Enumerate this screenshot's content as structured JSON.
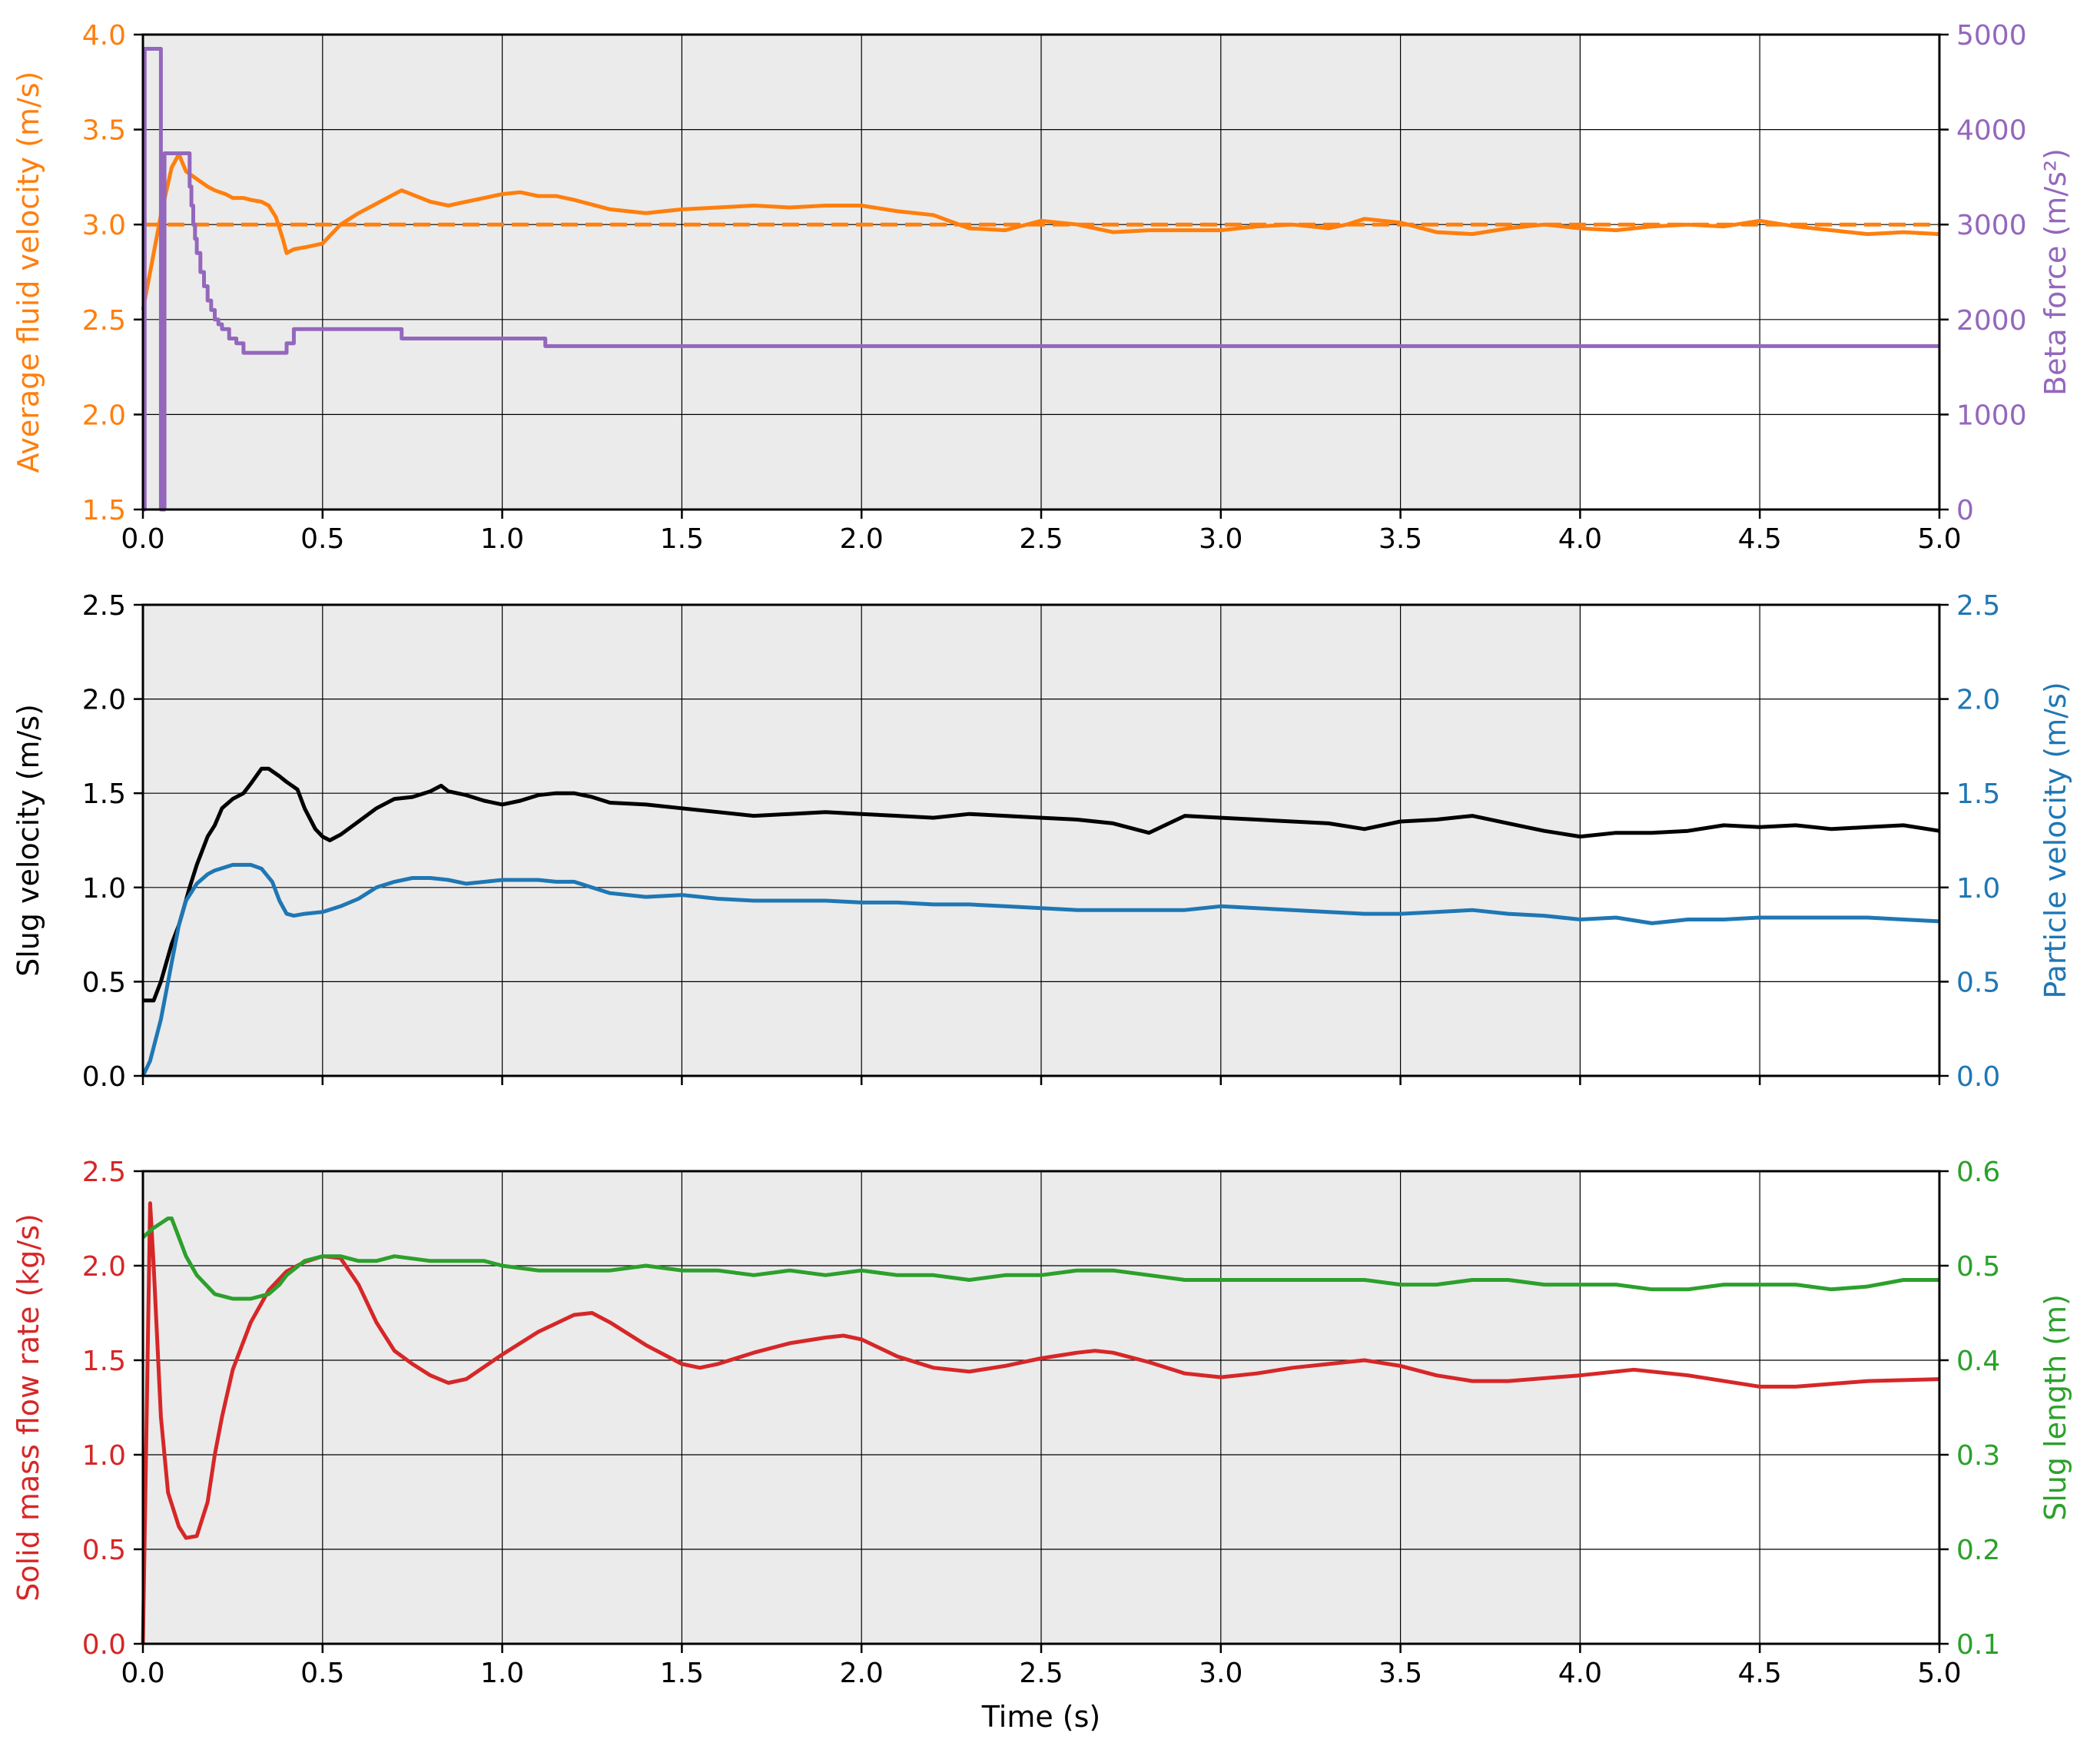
{
  "chart_data": [
    {
      "type": "line",
      "x_axis": {
        "ylim_unused": null,
        "xlim": [
          0,
          5
        ],
        "ticks": [
          0,
          0.5,
          1,
          1.5,
          2,
          2.5,
          3,
          3.5,
          4,
          4.5,
          5
        ],
        "tick_labels": [
          "0.0",
          "0.5",
          "1.0",
          "1.5",
          "2.0",
          "2.5",
          "3.0",
          "3.5",
          "4.0",
          "4.5",
          "5.0"
        ]
      },
      "shaded_region": [
        0,
        4
      ],
      "grid": true,
      "left_axis": {
        "label": "Average fluid velocity (m/s)",
        "color": "#ff7f0e",
        "ylim": [
          1.5,
          4.0
        ],
        "ticks": [
          1.5,
          2.0,
          2.5,
          3.0,
          3.5,
          4.0
        ],
        "tick_labels": [
          "1.5",
          "2.0",
          "2.5",
          "3.0",
          "3.5",
          "4.0"
        ]
      },
      "right_axis": {
        "label": "Beta force (m/s²)",
        "color": "#9467bd",
        "ylim": [
          0,
          5000
        ],
        "ticks": [
          0,
          1000,
          2000,
          3000,
          4000,
          5000
        ],
        "tick_labels": [
          "0",
          "1000",
          "2000",
          "3000",
          "4000",
          "5000"
        ]
      },
      "series": [
        {
          "axis": "left",
          "color": "#ff7f0e",
          "dashed": true,
          "x": [
            0,
            5
          ],
          "y": [
            3.0,
            3.0
          ]
        },
        {
          "axis": "left",
          "color": "#ff7f0e",
          "x": [
            0,
            0.02,
            0.05,
            0.08,
            0.1,
            0.12,
            0.15,
            0.18,
            0.2,
            0.23,
            0.25,
            0.28,
            0.3,
            0.33,
            0.35,
            0.37,
            0.39,
            0.4,
            0.42,
            0.45,
            0.5,
            0.55,
            0.6,
            0.7,
            0.72,
            0.8,
            0.85,
            0.9,
            1.0,
            1.05,
            1.1,
            1.15,
            1.2,
            1.3,
            1.4,
            1.5,
            1.6,
            1.7,
            1.8,
            1.9,
            2.0,
            2.1,
            2.2,
            2.3,
            2.4,
            2.5,
            2.6,
            2.7,
            2.8,
            2.9,
            3.0,
            3.1,
            3.2,
            3.3,
            3.35,
            3.4,
            3.5,
            3.6,
            3.7,
            3.8,
            3.9,
            4.0,
            4.1,
            4.2,
            4.3,
            4.4,
            4.5,
            4.6,
            4.7,
            4.8,
            4.9,
            5.0
          ],
          "y": [
            2.55,
            2.75,
            3.05,
            3.3,
            3.37,
            3.28,
            3.24,
            3.2,
            3.18,
            3.16,
            3.14,
            3.14,
            3.13,
            3.12,
            3.1,
            3.04,
            2.92,
            2.85,
            2.87,
            2.88,
            2.9,
            3.0,
            3.06,
            3.16,
            3.18,
            3.12,
            3.1,
            3.12,
            3.16,
            3.17,
            3.15,
            3.15,
            3.13,
            3.08,
            3.06,
            3.08,
            3.09,
            3.1,
            3.09,
            3.1,
            3.1,
            3.07,
            3.05,
            2.98,
            2.97,
            3.02,
            3.0,
            2.96,
            2.97,
            2.97,
            2.97,
            2.99,
            3.0,
            2.98,
            3.0,
            3.03,
            3.01,
            2.96,
            2.95,
            2.98,
            3.0,
            2.98,
            2.97,
            2.99,
            3.0,
            2.99,
            3.02,
            2.99,
            2.97,
            2.95,
            2.96,
            2.95
          ]
        },
        {
          "axis": "right",
          "color": "#9467bd",
          "step": true,
          "x": [
            0,
            0.005,
            0.04,
            0.05,
            0.06,
            0.12,
            0.13,
            0.135,
            0.14,
            0.145,
            0.15,
            0.16,
            0.17,
            0.18,
            0.19,
            0.2,
            0.21,
            0.22,
            0.24,
            0.26,
            0.28,
            0.3,
            0.38,
            0.4,
            0.42,
            0.7,
            0.72,
            1.1,
            1.12,
            5.0
          ],
          "y": [
            0,
            4850,
            4850,
            0,
            3750,
            3750,
            3400,
            3200,
            3000,
            2850,
            2700,
            2500,
            2350,
            2200,
            2100,
            2000,
            1950,
            1900,
            1800,
            1750,
            1650,
            1650,
            1650,
            1750,
            1900,
            1900,
            1800,
            1800,
            1720,
            1720
          ]
        }
      ]
    },
    {
      "type": "line",
      "x_axis": {
        "xlim": [
          0,
          5
        ],
        "ticks": [
          0,
          0.5,
          1,
          1.5,
          2,
          2.5,
          3,
          3.5,
          4,
          4.5,
          5
        ]
      },
      "shaded_region": [
        0,
        4
      ],
      "grid": true,
      "left_axis": {
        "label": "Slug velocity (m/s)",
        "color": "#000000",
        "ylim": [
          0,
          2.5
        ],
        "ticks": [
          0,
          0.5,
          1,
          1.5,
          2,
          2.5
        ],
        "tick_labels": [
          "0.0",
          "0.5",
          "1.0",
          "1.5",
          "2.0",
          "2.5"
        ]
      },
      "right_axis": {
        "label": "Particle velocity (m/s)",
        "color": "#1f77b4",
        "ylim": [
          0,
          2.5
        ],
        "ticks": [
          0,
          0.5,
          1,
          1.5,
          2,
          2.5
        ],
        "tick_labels": [
          "0.0",
          "0.5",
          "1.0",
          "1.5",
          "2.0",
          "2.5"
        ]
      },
      "series": [
        {
          "axis": "left",
          "color": "#000000",
          "x": [
            0,
            0.03,
            0.05,
            0.08,
            0.1,
            0.13,
            0.15,
            0.18,
            0.2,
            0.22,
            0.25,
            0.28,
            0.3,
            0.33,
            0.35,
            0.38,
            0.4,
            0.43,
            0.45,
            0.48,
            0.5,
            0.52,
            0.55,
            0.6,
            0.65,
            0.7,
            0.75,
            0.8,
            0.83,
            0.85,
            0.9,
            0.95,
            1.0,
            1.05,
            1.1,
            1.15,
            1.2,
            1.25,
            1.3,
            1.4,
            1.5,
            1.6,
            1.7,
            1.8,
            1.9,
            2.0,
            2.1,
            2.2,
            2.3,
            2.4,
            2.5,
            2.6,
            2.7,
            2.8,
            2.9,
            3.0,
            3.1,
            3.2,
            3.3,
            3.4,
            3.5,
            3.6,
            3.7,
            3.8,
            3.9,
            4.0,
            4.1,
            4.2,
            4.3,
            4.4,
            4.5,
            4.6,
            4.7,
            4.8,
            4.9,
            5.0
          ],
          "y": [
            0.4,
            0.4,
            0.5,
            0.7,
            0.8,
            1.0,
            1.12,
            1.27,
            1.33,
            1.42,
            1.47,
            1.5,
            1.55,
            1.63,
            1.63,
            1.59,
            1.56,
            1.52,
            1.42,
            1.31,
            1.27,
            1.25,
            1.28,
            1.35,
            1.42,
            1.47,
            1.48,
            1.51,
            1.54,
            1.51,
            1.49,
            1.46,
            1.44,
            1.46,
            1.49,
            1.5,
            1.5,
            1.48,
            1.45,
            1.44,
            1.42,
            1.4,
            1.38,
            1.39,
            1.4,
            1.39,
            1.38,
            1.37,
            1.39,
            1.38,
            1.37,
            1.36,
            1.34,
            1.29,
            1.38,
            1.37,
            1.36,
            1.35,
            1.34,
            1.31,
            1.35,
            1.36,
            1.38,
            1.34,
            1.3,
            1.27,
            1.29,
            1.29,
            1.3,
            1.33,
            1.32,
            1.33,
            1.31,
            1.32,
            1.33,
            1.3
          ]
        },
        {
          "axis": "right",
          "color": "#1f77b4",
          "x": [
            0,
            0.02,
            0.05,
            0.08,
            0.1,
            0.12,
            0.15,
            0.18,
            0.2,
            0.25,
            0.3,
            0.33,
            0.36,
            0.38,
            0.4,
            0.42,
            0.45,
            0.5,
            0.55,
            0.6,
            0.65,
            0.7,
            0.75,
            0.8,
            0.85,
            0.9,
            1.0,
            1.1,
            1.15,
            1.2,
            1.3,
            1.4,
            1.5,
            1.6,
            1.7,
            1.8,
            1.9,
            2.0,
            2.1,
            2.2,
            2.3,
            2.4,
            2.5,
            2.6,
            2.7,
            2.8,
            2.9,
            3.0,
            3.1,
            3.2,
            3.3,
            3.4,
            3.5,
            3.6,
            3.7,
            3.8,
            3.9,
            4.0,
            4.1,
            4.2,
            4.3,
            4.4,
            4.5,
            4.6,
            4.7,
            4.8,
            4.9,
            5.0
          ],
          "y": [
            0.0,
            0.08,
            0.3,
            0.6,
            0.8,
            0.93,
            1.02,
            1.07,
            1.09,
            1.12,
            1.12,
            1.1,
            1.03,
            0.93,
            0.86,
            0.85,
            0.86,
            0.87,
            0.9,
            0.94,
            1.0,
            1.03,
            1.05,
            1.05,
            1.04,
            1.02,
            1.04,
            1.04,
            1.03,
            1.03,
            0.97,
            0.95,
            0.96,
            0.94,
            0.93,
            0.93,
            0.93,
            0.92,
            0.92,
            0.91,
            0.91,
            0.9,
            0.89,
            0.88,
            0.88,
            0.88,
            0.88,
            0.9,
            0.89,
            0.88,
            0.87,
            0.86,
            0.86,
            0.87,
            0.88,
            0.86,
            0.85,
            0.83,
            0.84,
            0.81,
            0.83,
            0.83,
            0.84,
            0.84,
            0.84,
            0.84,
            0.83,
            0.82
          ]
        }
      ]
    },
    {
      "type": "line",
      "x_axis": {
        "label": "Time (s)",
        "xlim": [
          0,
          5
        ],
        "ticks": [
          0,
          0.5,
          1,
          1.5,
          2,
          2.5,
          3,
          3.5,
          4,
          4.5,
          5
        ],
        "tick_labels": [
          "0.0",
          "0.5",
          "1.0",
          "1.5",
          "2.0",
          "2.5",
          "3.0",
          "3.5",
          "4.0",
          "4.5",
          "5.0"
        ]
      },
      "shaded_region": [
        0,
        4
      ],
      "grid": true,
      "left_axis": {
        "label": "Solid mass flow rate (kg/s)",
        "color": "#d62728",
        "ylim": [
          0,
          2.5
        ],
        "ticks": [
          0,
          0.5,
          1,
          1.5,
          2,
          2.5
        ],
        "tick_labels": [
          "0.0",
          "0.5",
          "1.0",
          "1.5",
          "2.0",
          "2.5"
        ]
      },
      "right_axis": {
        "label": "Slug length (m)",
        "color": "#2ca02c",
        "ylim": [
          0.1,
          0.6
        ],
        "ticks": [
          0.1,
          0.2,
          0.3,
          0.4,
          0.5,
          0.6
        ],
        "tick_labels": [
          "0.1",
          "0.2",
          "0.3",
          "0.4",
          "0.5",
          "0.6"
        ]
      },
      "series": [
        {
          "axis": "left",
          "color": "#d62728",
          "x": [
            0,
            0.02,
            0.03,
            0.05,
            0.07,
            0.1,
            0.12,
            0.15,
            0.18,
            0.2,
            0.22,
            0.25,
            0.3,
            0.35,
            0.4,
            0.45,
            0.5,
            0.55,
            0.6,
            0.65,
            0.7,
            0.75,
            0.8,
            0.85,
            0.9,
            1.0,
            1.1,
            1.2,
            1.25,
            1.3,
            1.4,
            1.5,
            1.55,
            1.6,
            1.7,
            1.8,
            1.9,
            1.95,
            2.0,
            2.1,
            2.2,
            2.3,
            2.4,
            2.5,
            2.6,
            2.65,
            2.7,
            2.8,
            2.9,
            3.0,
            3.1,
            3.2,
            3.3,
            3.4,
            3.5,
            3.6,
            3.7,
            3.75,
            3.8,
            4.0,
            4.15,
            4.3,
            4.5,
            4.6,
            4.8,
            5.0
          ],
          "y": [
            0.0,
            2.33,
            2.0,
            1.2,
            0.8,
            0.62,
            0.56,
            0.57,
            0.75,
            1.0,
            1.2,
            1.45,
            1.7,
            1.87,
            1.97,
            2.02,
            2.05,
            2.04,
            1.9,
            1.7,
            1.55,
            1.48,
            1.42,
            1.38,
            1.4,
            1.53,
            1.65,
            1.74,
            1.75,
            1.7,
            1.58,
            1.48,
            1.46,
            1.48,
            1.54,
            1.59,
            1.62,
            1.63,
            1.61,
            1.52,
            1.46,
            1.44,
            1.47,
            1.51,
            1.54,
            1.55,
            1.54,
            1.49,
            1.43,
            1.41,
            1.43,
            1.46,
            1.48,
            1.5,
            1.47,
            1.42,
            1.39,
            1.39,
            1.39,
            1.42,
            1.45,
            1.42,
            1.36,
            1.36,
            1.39,
            1.4
          ]
        },
        {
          "axis": "right",
          "color": "#2ca02c",
          "x": [
            0,
            0.03,
            0.05,
            0.07,
            0.08,
            0.1,
            0.12,
            0.15,
            0.2,
            0.25,
            0.3,
            0.35,
            0.38,
            0.4,
            0.45,
            0.5,
            0.55,
            0.6,
            0.65,
            0.7,
            0.8,
            0.85,
            0.9,
            0.95,
            1.0,
            1.1,
            1.2,
            1.3,
            1.4,
            1.5,
            1.6,
            1.7,
            1.8,
            1.9,
            2.0,
            2.1,
            2.2,
            2.3,
            2.4,
            2.5,
            2.6,
            2.7,
            2.8,
            2.9,
            3.0,
            3.1,
            3.2,
            3.3,
            3.4,
            3.5,
            3.6,
            3.7,
            3.8,
            3.9,
            4.0,
            4.1,
            4.2,
            4.3,
            4.4,
            4.5,
            4.6,
            4.7,
            4.8,
            4.9,
            5.0
          ],
          "y": [
            0.53,
            0.54,
            0.545,
            0.55,
            0.55,
            0.53,
            0.51,
            0.49,
            0.47,
            0.465,
            0.465,
            0.47,
            0.48,
            0.49,
            0.505,
            0.51,
            0.51,
            0.505,
            0.505,
            0.51,
            0.505,
            0.505,
            0.505,
            0.505,
            0.5,
            0.495,
            0.495,
            0.495,
            0.5,
            0.495,
            0.495,
            0.49,
            0.495,
            0.49,
            0.495,
            0.49,
            0.49,
            0.485,
            0.49,
            0.49,
            0.495,
            0.495,
            0.49,
            0.485,
            0.485,
            0.485,
            0.485,
            0.485,
            0.485,
            0.48,
            0.48,
            0.485,
            0.485,
            0.48,
            0.48,
            0.48,
            0.475,
            0.475,
            0.48,
            0.48,
            0.48,
            0.475,
            0.478,
            0.485,
            0.485
          ]
        }
      ]
    }
  ]
}
